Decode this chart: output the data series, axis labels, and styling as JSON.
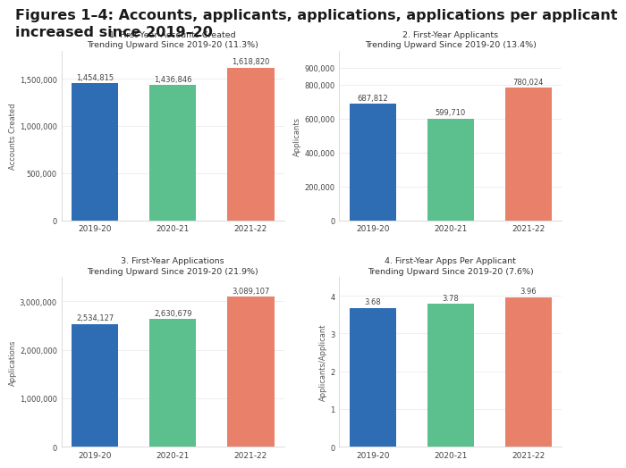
{
  "title_line1": "Figures 1–4: Accounts, applicants, applications, applications per applicant",
  "title_line2": "increased since 2019–20",
  "title_color": "#1a1a1a",
  "title_fontsize": 11.5,
  "title_fontweight": "bold",
  "background_color": "#ffffff",
  "bar_colors": [
    "#2e6db4",
    "#5bbf8e",
    "#e8806a"
  ],
  "categories": [
    "2019-20",
    "2020-21",
    "2021-22"
  ],
  "subplots": [
    {
      "title": "1. First-Year Accounts Created",
      "subtitle": "Trending Upward Since 2019-20 (11.3%)",
      "ylabel": "Accounts Created",
      "values": [
        1454815,
        1436846,
        1618820
      ],
      "ylim": [
        0,
        1800000
      ],
      "yticks": [
        0,
        500000,
        1000000,
        1500000
      ],
      "ytick_labels": [
        "0",
        "500,000",
        "1,000,000",
        "1,500,000"
      ],
      "value_labels": [
        "1,454,815",
        "1,436,846",
        "1,618,820"
      ]
    },
    {
      "title": "2. First-Year Applicants",
      "subtitle": "Trending Upward Since 2019-20 (13.4%)",
      "ylabel": "Applicants",
      "values": [
        687812,
        599710,
        780024
      ],
      "ylim": [
        0,
        1000000
      ],
      "yticks": [
        0,
        200000,
        400000,
        600000,
        800000
      ],
      "ytick_labels": [
        "0",
        "200,000",
        "400,000",
        "600,000",
        "800,000"
      ],
      "value_labels": [
        "687,812",
        "599,710",
        "780,024"
      ],
      "extra_ytick": 900000,
      "extra_ytick_label": "900,000"
    },
    {
      "title": "3. First-Year Applications",
      "subtitle": "Trending Upward Since 2019-20 (21.9%)",
      "ylabel": "Applications",
      "values": [
        2534127,
        2630679,
        3089107
      ],
      "ylim": [
        0,
        3500000
      ],
      "yticks": [
        0,
        1000000,
        2000000,
        3000000
      ],
      "ytick_labels": [
        "0",
        "1,000,000",
        "2,000,000",
        "3,000,000"
      ],
      "value_labels": [
        "2,534,127",
        "2,630,679",
        "3,089,107"
      ]
    },
    {
      "title": "4. First-Year Apps Per Applicant",
      "subtitle": "Trending Upward Since 2019-20 (7.6%)",
      "ylabel": "Applicants/Applicant",
      "values": [
        3.68,
        3.78,
        3.96
      ],
      "ylim": [
        0,
        4.5
      ],
      "yticks": [
        0,
        1,
        2,
        3,
        4
      ],
      "ytick_labels": [
        "0",
        "1",
        "2",
        "3",
        "4"
      ],
      "value_labels": [
        "3.68",
        "3.78",
        "3.96"
      ]
    }
  ]
}
